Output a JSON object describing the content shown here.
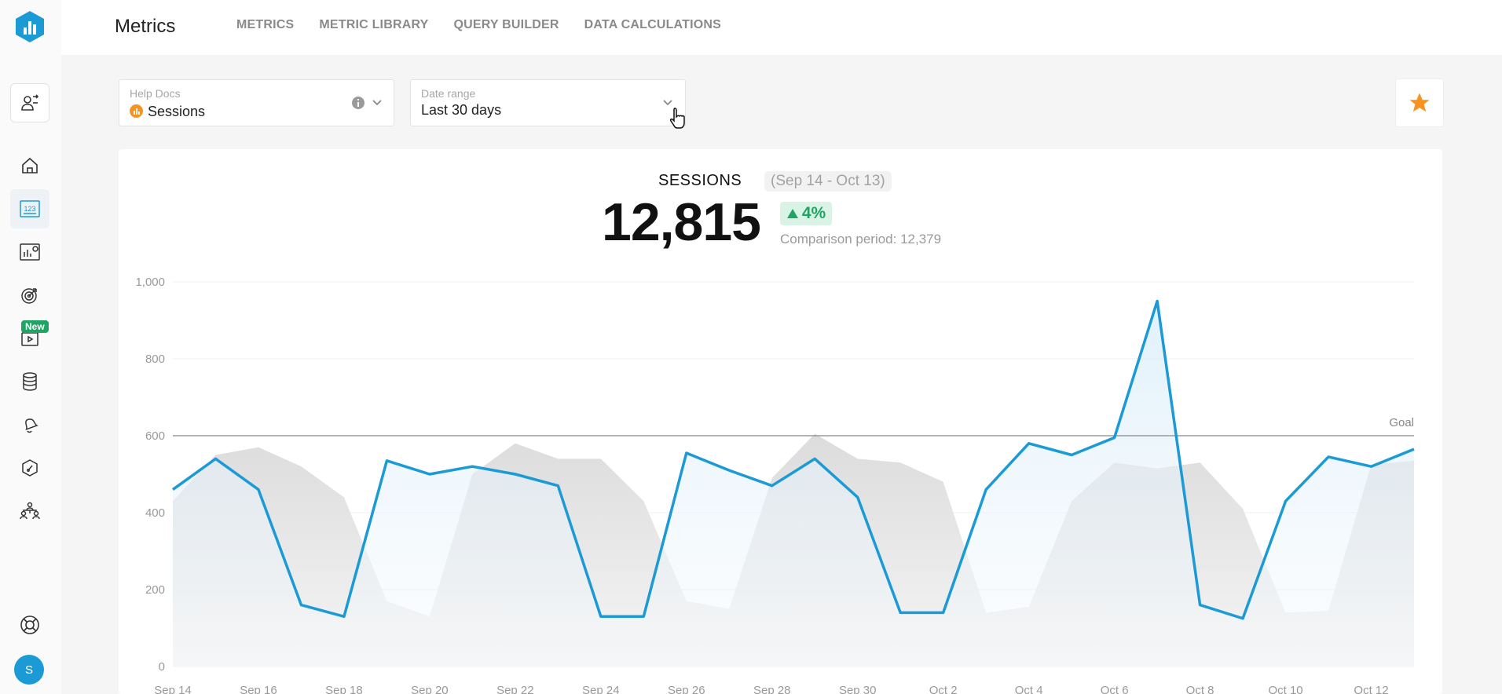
{
  "app": {
    "page_title": "Metrics"
  },
  "nav": [
    "METRICS",
    "METRIC LIBRARY",
    "QUERY BUILDER",
    "DATA CALCULATIONS"
  ],
  "sidebar": {
    "new_badge": "New",
    "avatar_initial": "S"
  },
  "selectors": {
    "metric": {
      "label": "Help Docs",
      "value": "Sessions"
    },
    "date_range": {
      "label": "Date range",
      "value": "Last 30 days"
    }
  },
  "colors": {
    "accent": "#1b9ad6",
    "star": "#f7931e",
    "positive": "#1fa463"
  },
  "metric": {
    "name": "SESSIONS",
    "range": "(Sep 14 - Oct 13)",
    "value": "12,815",
    "delta": "4%",
    "comparison": "Comparison period: 12,379"
  },
  "chart_data": {
    "type": "line",
    "ylim": [
      0,
      1000
    ],
    "y_ticks": [
      "0",
      "200",
      "400",
      "600",
      "800",
      "1,000"
    ],
    "x_tick_labels": [
      "Sep 14",
      "Sep 16",
      "Sep 18",
      "Sep 20",
      "Sep 22",
      "Sep 24",
      "Sep 26",
      "Sep 28",
      "Sep 30",
      "Oct 2",
      "Oct 4",
      "Oct 6",
      "Oct 8",
      "Oct 10",
      "Oct 12"
    ],
    "goal": {
      "label": "Goal",
      "value": 600
    },
    "series": [
      {
        "values": [
          460,
          540,
          460,
          160,
          130,
          535,
          500,
          520,
          500,
          470,
          130,
          130,
          555,
          510,
          470,
          540,
          440,
          140,
          140,
          460,
          580,
          550,
          595,
          950,
          160,
          125,
          430,
          545,
          520,
          565
        ]
      },
      {
        "values": [
          430,
          550,
          570,
          520,
          440,
          170,
          130,
          500,
          580,
          540,
          540,
          430,
          170,
          150,
          490,
          605,
          540,
          530,
          480,
          140,
          155,
          430,
          530,
          515,
          530,
          410,
          140,
          145,
          525,
          535
        ]
      }
    ]
  }
}
